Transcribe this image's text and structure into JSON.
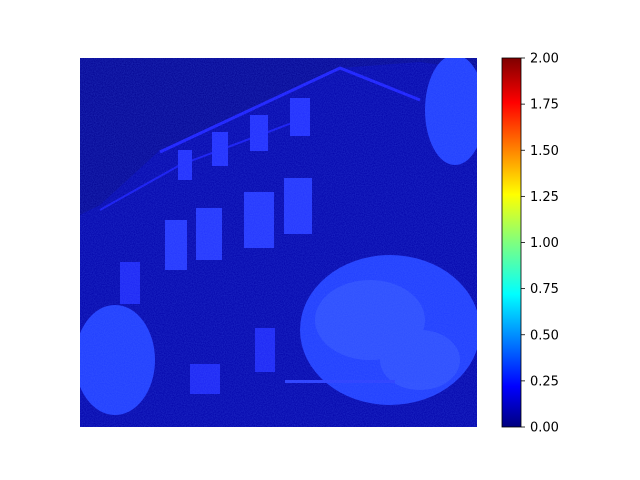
{
  "chart_data": {
    "type": "heatmap",
    "title": "",
    "xlabel": "",
    "ylabel": "",
    "axes_visible": false,
    "colormap": "jet",
    "colorbar": {
      "vmin": 0.0,
      "vmax": 2.0,
      "placement": "right",
      "ticks": [
        0.0,
        0.25,
        0.5,
        0.75,
        1.0,
        1.25,
        1.5,
        1.75,
        2.0
      ],
      "tick_labels": [
        "0.00",
        "0.25",
        "0.50",
        "0.75",
        "1.00",
        "1.25",
        "1.50",
        "1.75",
        "2.00"
      ]
    },
    "dominant_value_range": [
      0.0,
      0.4
    ],
    "description": "Per-pixel error heatmap of a building facade with trees, values mostly between 0 and 0.35"
  }
}
